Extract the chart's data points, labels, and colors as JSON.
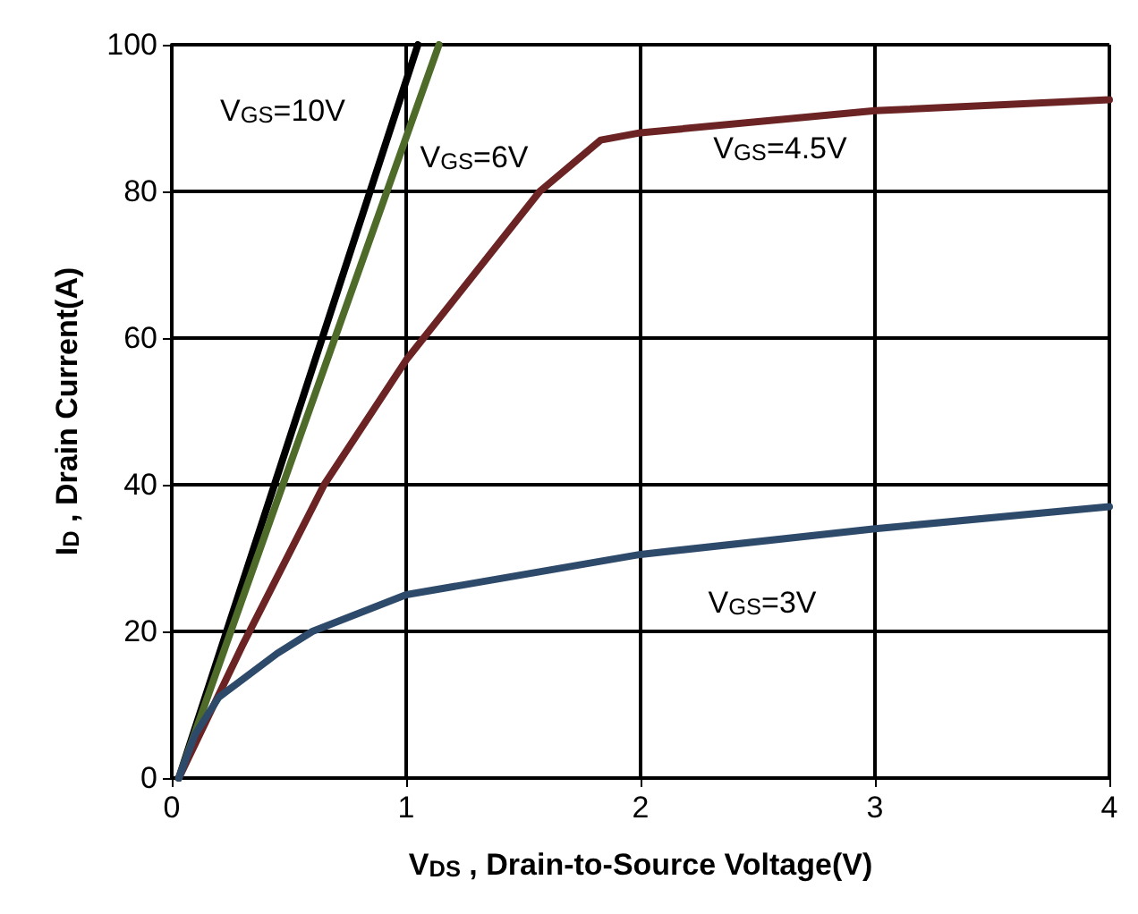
{
  "chart_data": {
    "type": "line",
    "xlabel": "V$_{DS}$ , Drain-to-Source Voltage(V)",
    "ylabel": "I$_{D}$ , Drain Current(A)",
    "xlim": [
      0,
      4
    ],
    "xticks": [
      0,
      1,
      2,
      3,
      4
    ],
    "ylim": [
      0,
      100
    ],
    "yticks": [
      0,
      20,
      40,
      60,
      80,
      100
    ],
    "grid": true,
    "marker": "none",
    "line_style": "solid",
    "series": [
      {
        "name": "V$_{GS}$=10V",
        "color": "#000000",
        "x": [
          0.03,
          1.05
        ],
        "values": [
          0,
          100
        ]
      },
      {
        "name": "V$_{GS}$=6V",
        "color": "#4f6b2a",
        "x": [
          0.03,
          1.14
        ],
        "values": [
          0,
          100
        ]
      },
      {
        "name": "V$_{GS}$=4.5V",
        "color": "#6b2323",
        "x": [
          0.03,
          0.3,
          0.65,
          1.0,
          1.57,
          1.83,
          2.0,
          3.0,
          4.0
        ],
        "values": [
          0,
          18,
          40,
          57,
          80,
          87,
          88,
          91,
          92.5
        ]
      },
      {
        "name": "V$_{GS}$=3V",
        "color": "#2e4a6b",
        "x": [
          0.03,
          0.1,
          0.2,
          0.45,
          0.6,
          1.0,
          2.0,
          3.0,
          4.0
        ],
        "values": [
          0,
          6,
          11,
          17,
          20,
          25,
          30.5,
          34,
          37
        ]
      }
    ]
  }
}
